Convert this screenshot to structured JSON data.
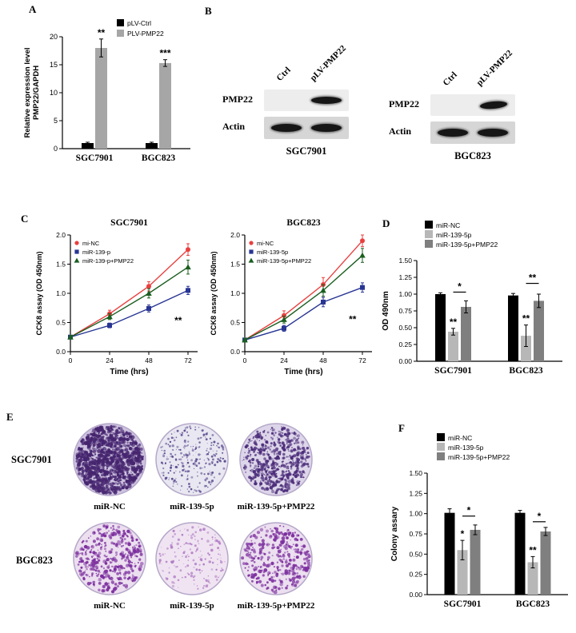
{
  "panel_labels": {
    "a": "A",
    "b": "B",
    "c": "C",
    "d": "D",
    "e": "E",
    "f": "F"
  },
  "chart_data": [
    {
      "id": "A",
      "type": "bar",
      "ylabel_lines": [
        "Relative expression level",
        "PMP22/GAPDH"
      ],
      "categories": [
        "SGC7901",
        "BGC823"
      ],
      "ylim": [
        0,
        20
      ],
      "yticks": [
        0,
        5,
        10,
        15,
        20
      ],
      "ytick_labels": [
        "0",
        "5",
        "10",
        "15",
        "20"
      ],
      "series": [
        {
          "name": "pLV-Ctrl",
          "color": "#000000",
          "values": [
            1.0,
            1.0
          ],
          "errors": [
            0.15,
            0.15
          ]
        },
        {
          "name": "PLV-PMP22",
          "color": "#a6a6a6",
          "values": [
            18.0,
            15.3
          ],
          "errors": [
            1.6,
            0.6
          ]
        }
      ],
      "significance": [
        {
          "kind": "star",
          "group": 0,
          "series": 1,
          "text": "**"
        },
        {
          "kind": "star",
          "group": 1,
          "series": 1,
          "text": "***"
        }
      ]
    },
    {
      "id": "C-SGC7901",
      "type": "line",
      "title": "SGC7901",
      "xlabel": "Time (hrs)",
      "ylabel": "CCK8 assay (OD 450nm)",
      "x": [
        0,
        24,
        48,
        72
      ],
      "xlim": [
        0,
        72
      ],
      "ylim": [
        0,
        2
      ],
      "yticks": [
        0,
        0.5,
        1,
        1.5,
        2
      ],
      "ytick_labels": [
        "0.0",
        "0.5",
        "1.0",
        "1.5",
        "2.0"
      ],
      "series": [
        {
          "name": "mi-NC",
          "color": "#e8403f",
          "marker": "circle",
          "values": [
            0.25,
            0.65,
            1.12,
            1.75
          ],
          "errors": [
            0.03,
            0.06,
            0.08,
            0.1
          ]
        },
        {
          "name": "miR-139-p",
          "color": "#283593",
          "marker": "square",
          "values": [
            0.25,
            0.45,
            0.74,
            1.05
          ],
          "errors": [
            0.03,
            0.04,
            0.06,
            0.07
          ]
        },
        {
          "name": "miR-139-p+PMP22",
          "color": "#1b5e20",
          "marker": "triangle",
          "values": [
            0.25,
            0.6,
            1.0,
            1.45
          ],
          "errors": [
            0.03,
            0.05,
            0.08,
            0.12
          ]
        }
      ],
      "significance": [
        {
          "text": "**",
          "x": 66,
          "y": 0.48
        }
      ]
    },
    {
      "id": "C-BGC823",
      "type": "line",
      "title": "BGC823",
      "xlabel": "Time (hrs)",
      "ylabel": "CCK8 assay (OD 450nm)",
      "x": [
        0,
        24,
        48,
        72
      ],
      "xlim": [
        0,
        72
      ],
      "ylim": [
        0,
        2
      ],
      "yticks": [
        0,
        0.5,
        1,
        1.5,
        2
      ],
      "ytick_labels": [
        "0.0",
        "0.5",
        "1.0",
        "1.5",
        "2.0"
      ],
      "series": [
        {
          "name": "mi-NC",
          "color": "#e8403f",
          "marker": "circle",
          "values": [
            0.2,
            0.62,
            1.15,
            1.9
          ],
          "errors": [
            0.03,
            0.08,
            0.12,
            0.1
          ]
        },
        {
          "name": "miR-139-5p",
          "color": "#283593",
          "marker": "square",
          "values": [
            0.2,
            0.4,
            0.85,
            1.1
          ],
          "errors": [
            0.03,
            0.05,
            0.08,
            0.08
          ]
        },
        {
          "name": "miR-139-5p+PMP22",
          "color": "#1b5e20",
          "marker": "triangle",
          "values": [
            0.2,
            0.55,
            1.05,
            1.65
          ],
          "errors": [
            0.03,
            0.06,
            0.1,
            0.12
          ]
        }
      ],
      "significance": [
        {
          "text": "**",
          "x": 66,
          "y": 0.5
        }
      ]
    },
    {
      "id": "D",
      "type": "bar",
      "ylabel_lines": [
        "OD 490nm"
      ],
      "categories": [
        "SGC7901",
        "BGC823"
      ],
      "ylim": [
        0,
        1.5
      ],
      "yticks": [
        0,
        0.25,
        0.5,
        0.75,
        1,
        1.25,
        1.5
      ],
      "ytick_labels": [
        "0.00",
        "0.25",
        "0.50",
        "0.75",
        "1.00",
        "1.25",
        "1.50"
      ],
      "series": [
        {
          "name": "miR-NC",
          "color": "#000000",
          "values": [
            1.0,
            0.98
          ],
          "errors": [
            0.02,
            0.03
          ]
        },
        {
          "name": "miR-139-5p",
          "color": "#b7b7b7",
          "values": [
            0.44,
            0.38
          ],
          "errors": [
            0.05,
            0.16
          ]
        },
        {
          "name": "miR-139-5p+PMP22",
          "color": "#7f7f7f",
          "values": [
            0.81,
            0.9
          ],
          "errors": [
            0.09,
            0.1
          ]
        }
      ],
      "significance": [
        {
          "kind": "star",
          "group": 0,
          "series": 1,
          "text": "**"
        },
        {
          "kind": "bracket",
          "group": 0,
          "from": 1,
          "to": 2,
          "y": 1.03,
          "text": "*"
        },
        {
          "kind": "star",
          "group": 1,
          "series": 1,
          "text": "**"
        },
        {
          "kind": "bracket",
          "group": 1,
          "from": 1,
          "to": 2,
          "y": 1.16,
          "text": "**"
        }
      ]
    },
    {
      "id": "F",
      "type": "bar",
      "ylabel_lines": [
        "Colony assary"
      ],
      "categories": [
        "SGC7901",
        "BGC823"
      ],
      "ylim": [
        0,
        1.5
      ],
      "yticks": [
        0,
        0.25,
        0.5,
        0.75,
        1,
        1.25,
        1.5
      ],
      "ytick_labels": [
        "0.00",
        "0.25",
        "0.50",
        "0.75",
        "1.00",
        "1.25",
        "1.50"
      ],
      "series": [
        {
          "name": "miR-NC",
          "color": "#000000",
          "values": [
            1.01,
            1.01
          ],
          "errors": [
            0.05,
            0.03
          ]
        },
        {
          "name": "miR-139-5p",
          "color": "#b7b7b7",
          "values": [
            0.55,
            0.4
          ],
          "errors": [
            0.12,
            0.07
          ]
        },
        {
          "name": "miR-139-5p+PMP22",
          "color": "#7f7f7f",
          "values": [
            0.8,
            0.78
          ],
          "errors": [
            0.06,
            0.05
          ]
        }
      ],
      "significance": [
        {
          "kind": "star",
          "group": 0,
          "series": 1,
          "text": "*"
        },
        {
          "kind": "bracket",
          "group": 0,
          "from": 1,
          "to": 2,
          "y": 0.97,
          "text": "*"
        },
        {
          "kind": "star",
          "group": 1,
          "series": 1,
          "text": "**"
        },
        {
          "kind": "bracket",
          "group": 1,
          "from": 1,
          "to": 2,
          "y": 0.9,
          "text": "*"
        }
      ]
    }
  ],
  "western_blots": {
    "groups": [
      {
        "cell_line": "SGC7901",
        "lane_labels": [
          "Ctrl",
          "pLV-PMP22"
        ],
        "rows": [
          {
            "protein": "PMP22",
            "bands": [
              false,
              true
            ]
          },
          {
            "protein": "Actin",
            "bands": [
              true,
              true
            ]
          }
        ]
      },
      {
        "cell_line": "BGC823",
        "lane_labels": [
          "Ctrl",
          "pLV-PMP22"
        ],
        "rows": [
          {
            "protein": "PMP22",
            "bands": [
              false,
              true
            ]
          },
          {
            "protein": "Actin",
            "bands": [
              true,
              true
            ]
          }
        ]
      }
    ]
  },
  "colony_assay": {
    "rows": [
      {
        "cell_line": "SGC7901",
        "dishes": [
          {
            "label": "miR-NC",
            "bg": "#cdc3e0",
            "dot_color": "#46256f",
            "dots": 1000,
            "dot_min": 0.8,
            "dot_max": 2.6
          },
          {
            "label": "miR-139-5p",
            "bg": "#e9e7f1",
            "dot_color": "#5a4b8f",
            "dots": 260,
            "dot_min": 0.5,
            "dot_max": 1.6
          },
          {
            "label": "miR-139-5p+PMP22",
            "bg": "#ddd6ea",
            "dot_color": "#4c2d7a",
            "dots": 540,
            "dot_min": 0.6,
            "dot_max": 2.2
          }
        ]
      },
      {
        "cell_line": "BGC823",
        "dishes": [
          {
            "label": "miR-NC",
            "bg": "#ecdff0",
            "dot_color": "#7c2f9e",
            "dots": 380,
            "dot_min": 0.7,
            "dot_max": 2.4
          },
          {
            "label": "miR-139-5p",
            "bg": "#f0e4f2",
            "dot_color": "#b07cc4",
            "dots": 170,
            "dot_min": 0.5,
            "dot_max": 1.8
          },
          {
            "label": "miR-139-5p+PMP22",
            "bg": "#ecdff0",
            "dot_color": "#7c2f9e",
            "dots": 330,
            "dot_min": 0.7,
            "dot_max": 2.4
          }
        ]
      }
    ]
  }
}
